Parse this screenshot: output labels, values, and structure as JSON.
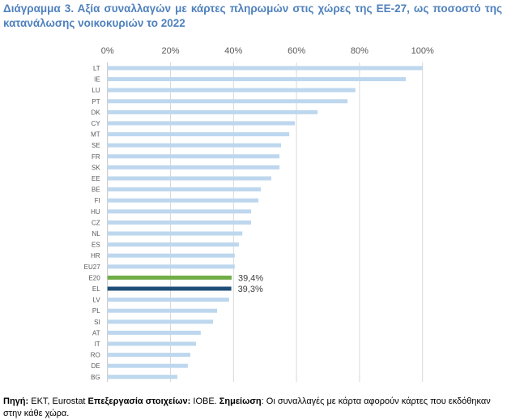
{
  "title": "Διάγραμμα 3. Αξία συναλλαγών με κάρτες πληρωμών στις χώρες της ΕΕ-27, ως ποσοστό της κατανάλωσης νοικοκυριών το 2022",
  "footer": {
    "source_label": "Πηγή:",
    "source_text": " ΕΚΤ, Eurostat",
    "processing_label": " Επεξεργασία στοιχείων:",
    "processing_text": " ΙΟΒΕ.",
    "note_label": " Σημείωση",
    "note_text": ": Οι συναλλαγές με κάρτα αφορούν κάρτες που εκδόθηκαν στην κάθε χώρα."
  },
  "chart_data": {
    "type": "bar",
    "orientation": "horizontal",
    "title": "Διάγραμμα 3. Αξία συναλλαγών με κάρτες πληρωμών στις χώρες της ΕΕ-27, ως ποσοστό της κατανάλωσης νοικοκυριών το 2022",
    "xlabel": "",
    "ylabel": "",
    "xlim": [
      0,
      100
    ],
    "x_ticks": [
      "0%",
      "20%",
      "40%",
      "60%",
      "80%",
      "100%"
    ],
    "x_tick_values": [
      0,
      20,
      40,
      60,
      80,
      100
    ],
    "axis_position": "top",
    "grid": true,
    "categories": [
      "LT",
      "IE",
      "LU",
      "PT",
      "DK",
      "CY",
      "MT",
      "SE",
      "FR",
      "SK",
      "EE",
      "BE",
      "FI",
      "HU",
      "CZ",
      "NL",
      "ES",
      "HR",
      "EU27",
      "E20",
      "EL",
      "LV",
      "PL",
      "SI",
      "AT",
      "IT",
      "RO",
      "DE",
      "BG"
    ],
    "values": [
      100.0,
      94.7,
      78.7,
      76.2,
      66.7,
      59.5,
      57.7,
      55.1,
      54.6,
      54.6,
      52.0,
      48.7,
      47.9,
      45.6,
      45.6,
      42.8,
      41.7,
      40.4,
      40.4,
      39.4,
      39.3,
      38.6,
      34.8,
      33.5,
      29.6,
      28.1,
      26.3,
      25.5,
      22.2
    ],
    "highlight": {
      "E20": "#70ad47",
      "EL": "#1f4e79"
    },
    "data_labels": {
      "E20": "39,4%",
      "EL": "39,3%"
    },
    "default_color": "#bdd7ee",
    "grid_color": "#d9d9d9"
  }
}
